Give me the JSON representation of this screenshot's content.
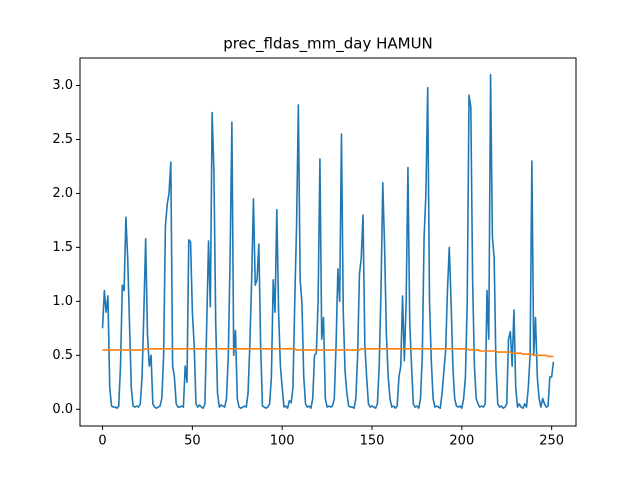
{
  "chart_data": {
    "type": "line",
    "title": "prec_fldas_mm_day HAMUN",
    "x": [
      0,
      1,
      2,
      3,
      4,
      5,
      6,
      7,
      8,
      9,
      10,
      11,
      12,
      13,
      14,
      15,
      16,
      17,
      18,
      19,
      20,
      21,
      22,
      23,
      24,
      25,
      26,
      27,
      28,
      29,
      30,
      31,
      32,
      33,
      34,
      35,
      36,
      37,
      38,
      39,
      40,
      41,
      42,
      43,
      44,
      45,
      46,
      47,
      48,
      49,
      50,
      51,
      52,
      53,
      54,
      55,
      56,
      57,
      58,
      59,
      60,
      61,
      62,
      63,
      64,
      65,
      66,
      67,
      68,
      69,
      70,
      71,
      72,
      73,
      74,
      75,
      76,
      77,
      78,
      79,
      80,
      81,
      82,
      83,
      84,
      85,
      86,
      87,
      88,
      89,
      90,
      91,
      92,
      93,
      94,
      95,
      96,
      97,
      98,
      99,
      100,
      101,
      102,
      103,
      104,
      105,
      106,
      107,
      108,
      109,
      110,
      111,
      112,
      113,
      114,
      115,
      116,
      117,
      118,
      119,
      120,
      121,
      122,
      123,
      124,
      125,
      126,
      127,
      128,
      129,
      130,
      131,
      132,
      133,
      134,
      135,
      136,
      137,
      138,
      139,
      140,
      141,
      142,
      143,
      144,
      145,
      146,
      147,
      148,
      149,
      150,
      151,
      152,
      153,
      154,
      155,
      156,
      157,
      158,
      159,
      160,
      161,
      162,
      163,
      164,
      165,
      166,
      167,
      168,
      169,
      170,
      171,
      172,
      173,
      174,
      175,
      176,
      177,
      178,
      179,
      180,
      181,
      182,
      183,
      184,
      185,
      186,
      187,
      188,
      189,
      190,
      191,
      192,
      193,
      194,
      195,
      196,
      197,
      198,
      199,
      200,
      201,
      202,
      203,
      204,
      205,
      206,
      207,
      208,
      209,
      210,
      211,
      212,
      213,
      214,
      215,
      216,
      217,
      218,
      219,
      220,
      221,
      222,
      223,
      224,
      225,
      226,
      227,
      228,
      229,
      230,
      231,
      232,
      233,
      234,
      235,
      236,
      237,
      238,
      239,
      240,
      241,
      242,
      243,
      244,
      245,
      246,
      247,
      248,
      249,
      250,
      251
    ],
    "series": [
      {
        "color": "#1f77b4",
        "values": [
          0.75,
          1.1,
          0.9,
          1.05,
          0.2,
          0.03,
          0.02,
          0.02,
          0.01,
          0.03,
          0.4,
          1.15,
          1.1,
          1.78,
          1.4,
          0.8,
          0.2,
          0.03,
          0.02,
          0.03,
          0.02,
          0.05,
          0.3,
          0.9,
          1.58,
          0.7,
          0.4,
          0.5,
          0.05,
          0.02,
          0.01,
          0.02,
          0.03,
          0.1,
          0.5,
          1.7,
          1.9,
          2.0,
          2.29,
          0.4,
          0.3,
          0.05,
          0.02,
          0.02,
          0.03,
          0.02,
          0.4,
          0.25,
          1.57,
          1.55,
          0.9,
          0.6,
          0.05,
          0.02,
          0.04,
          0.02,
          0.01,
          0.05,
          0.8,
          1.56,
          0.95,
          2.75,
          2.2,
          0.8,
          0.15,
          0.02,
          0.04,
          0.03,
          0.02,
          0.1,
          0.5,
          1.4,
          2.66,
          0.5,
          0.73,
          0.1,
          0.02,
          0.01,
          0.02,
          0.03,
          0.02,
          0.15,
          0.6,
          1.2,
          1.95,
          1.15,
          1.2,
          1.53,
          0.6,
          0.03,
          0.02,
          0.01,
          0.02,
          0.05,
          0.3,
          1.2,
          0.9,
          1.85,
          0.9,
          0.4,
          0.2,
          0.02,
          0.03,
          0.01,
          0.08,
          0.06,
          0.2,
          1.0,
          1.7,
          2.82,
          1.2,
          0.98,
          0.3,
          0.05,
          0.02,
          0.03,
          0.01,
          0.1,
          0.5,
          0.52,
          1.0,
          2.32,
          0.65,
          0.85,
          0.1,
          0.02,
          0.03,
          0.02,
          0.03,
          0.1,
          0.6,
          1.3,
          1.0,
          2.55,
          0.9,
          0.35,
          0.15,
          0.03,
          0.02,
          0.02,
          0.01,
          0.1,
          0.5,
          1.25,
          1.4,
          1.8,
          0.6,
          0.3,
          0.05,
          0.02,
          0.03,
          0.02,
          0.01,
          0.05,
          0.4,
          1.1,
          2.1,
          1.5,
          0.7,
          0.3,
          0.1,
          0.02,
          0.03,
          0.01,
          0.03,
          0.3,
          0.4,
          1.05,
          0.45,
          1.0,
          2.24,
          0.8,
          0.4,
          0.05,
          0.02,
          0.03,
          0.01,
          0.1,
          0.5,
          1.6,
          2.0,
          2.98,
          1.0,
          0.45,
          0.1,
          0.02,
          0.03,
          0.02,
          0.01,
          0.15,
          0.35,
          0.55,
          1.1,
          1.5,
          1.0,
          0.4,
          0.1,
          0.03,
          0.02,
          0.03,
          0.01,
          0.1,
          0.3,
          1.0,
          2.91,
          2.8,
          1.2,
          0.4,
          0.1,
          0.05,
          0.02,
          0.03,
          0.02,
          0.05,
          1.1,
          0.65,
          3.1,
          1.6,
          1.4,
          0.4,
          0.05,
          0.02,
          0.03,
          0.01,
          0.02,
          0.05,
          0.65,
          0.72,
          0.4,
          0.92,
          0.2,
          0.02,
          0.05,
          0.02,
          0.01,
          0.05,
          0.02,
          0.2,
          0.5,
          2.3,
          0.5,
          0.85,
          0.3,
          0.1,
          0.02,
          0.1,
          0.05,
          0.02,
          0.03,
          0.3,
          0.3,
          0.44
        ]
      },
      {
        "color": "#ff7f0e",
        "values": [
          0.55,
          0.55,
          0.55,
          0.55,
          0.55,
          0.55,
          0.55,
          0.55,
          0.55,
          0.55,
          0.55,
          0.55,
          0.55,
          0.55,
          0.55,
          0.55,
          0.55,
          0.55,
          0.55,
          0.55,
          0.55,
          0.55,
          0.55,
          0.55,
          0.56,
          0.56,
          0.56,
          0.56,
          0.56,
          0.56,
          0.56,
          0.56,
          0.56,
          0.56,
          0.56,
          0.56,
          0.56,
          0.56,
          0.56,
          0.56,
          0.56,
          0.56,
          0.56,
          0.56,
          0.56,
          0.56,
          0.56,
          0.56,
          0.56,
          0.56,
          0.56,
          0.56,
          0.56,
          0.56,
          0.56,
          0.56,
          0.56,
          0.56,
          0.56,
          0.56,
          0.56,
          0.56,
          0.56,
          0.56,
          0.56,
          0.56,
          0.56,
          0.56,
          0.56,
          0.56,
          0.56,
          0.56,
          0.56,
          0.56,
          0.56,
          0.56,
          0.56,
          0.56,
          0.56,
          0.56,
          0.56,
          0.56,
          0.56,
          0.56,
          0.56,
          0.56,
          0.56,
          0.56,
          0.56,
          0.56,
          0.56,
          0.56,
          0.56,
          0.56,
          0.56,
          0.56,
          0.56,
          0.56,
          0.56,
          0.56,
          0.56,
          0.56,
          0.56,
          0.56,
          0.56,
          0.56,
          0.56,
          0.56,
          0.55,
          0.55,
          0.55,
          0.55,
          0.55,
          0.55,
          0.55,
          0.55,
          0.55,
          0.55,
          0.55,
          0.55,
          0.55,
          0.55,
          0.55,
          0.55,
          0.55,
          0.55,
          0.55,
          0.55,
          0.55,
          0.55,
          0.55,
          0.55,
          0.55,
          0.55,
          0.55,
          0.55,
          0.55,
          0.55,
          0.55,
          0.55,
          0.55,
          0.55,
          0.55,
          0.55,
          0.56,
          0.56,
          0.56,
          0.56,
          0.56,
          0.56,
          0.56,
          0.56,
          0.56,
          0.56,
          0.56,
          0.56,
          0.56,
          0.56,
          0.56,
          0.56,
          0.56,
          0.56,
          0.56,
          0.56,
          0.56,
          0.56,
          0.56,
          0.56,
          0.56,
          0.56,
          0.56,
          0.56,
          0.56,
          0.56,
          0.56,
          0.56,
          0.56,
          0.56,
          0.56,
          0.56,
          0.56,
          0.56,
          0.56,
          0.56,
          0.56,
          0.56,
          0.56,
          0.56,
          0.56,
          0.56,
          0.56,
          0.56,
          0.56,
          0.56,
          0.56,
          0.56,
          0.56,
          0.56,
          0.56,
          0.56,
          0.56,
          0.56,
          0.56,
          0.56,
          0.55,
          0.55,
          0.55,
          0.55,
          0.55,
          0.55,
          0.54,
          0.54,
          0.54,
          0.54,
          0.54,
          0.54,
          0.54,
          0.54,
          0.54,
          0.54,
          0.53,
          0.53,
          0.53,
          0.53,
          0.53,
          0.53,
          0.53,
          0.53,
          0.52,
          0.52,
          0.52,
          0.52,
          0.52,
          0.52,
          0.51,
          0.51,
          0.51,
          0.51,
          0.51,
          0.51,
          0.5,
          0.5,
          0.5,
          0.5,
          0.5,
          0.5,
          0.5,
          0.5,
          0.49,
          0.49,
          0.49,
          0.49
        ]
      }
    ],
    "xlim": [
      -12.55,
      263.55
    ],
    "ylim": [
      -0.155,
      3.255
    ],
    "xticks": [
      0,
      50,
      100,
      150,
      200,
      250
    ],
    "yticks": [
      {
        "value": 0,
        "label": "0.0"
      },
      {
        "value": 0.5,
        "label": "0.5"
      },
      {
        "value": 1,
        "label": "1.0"
      },
      {
        "value": 1.5,
        "label": "1.5"
      },
      {
        "value": 2,
        "label": "2.0"
      },
      {
        "value": 2.5,
        "label": "2.5"
      },
      {
        "value": 3,
        "label": "3.0"
      }
    ]
  }
}
